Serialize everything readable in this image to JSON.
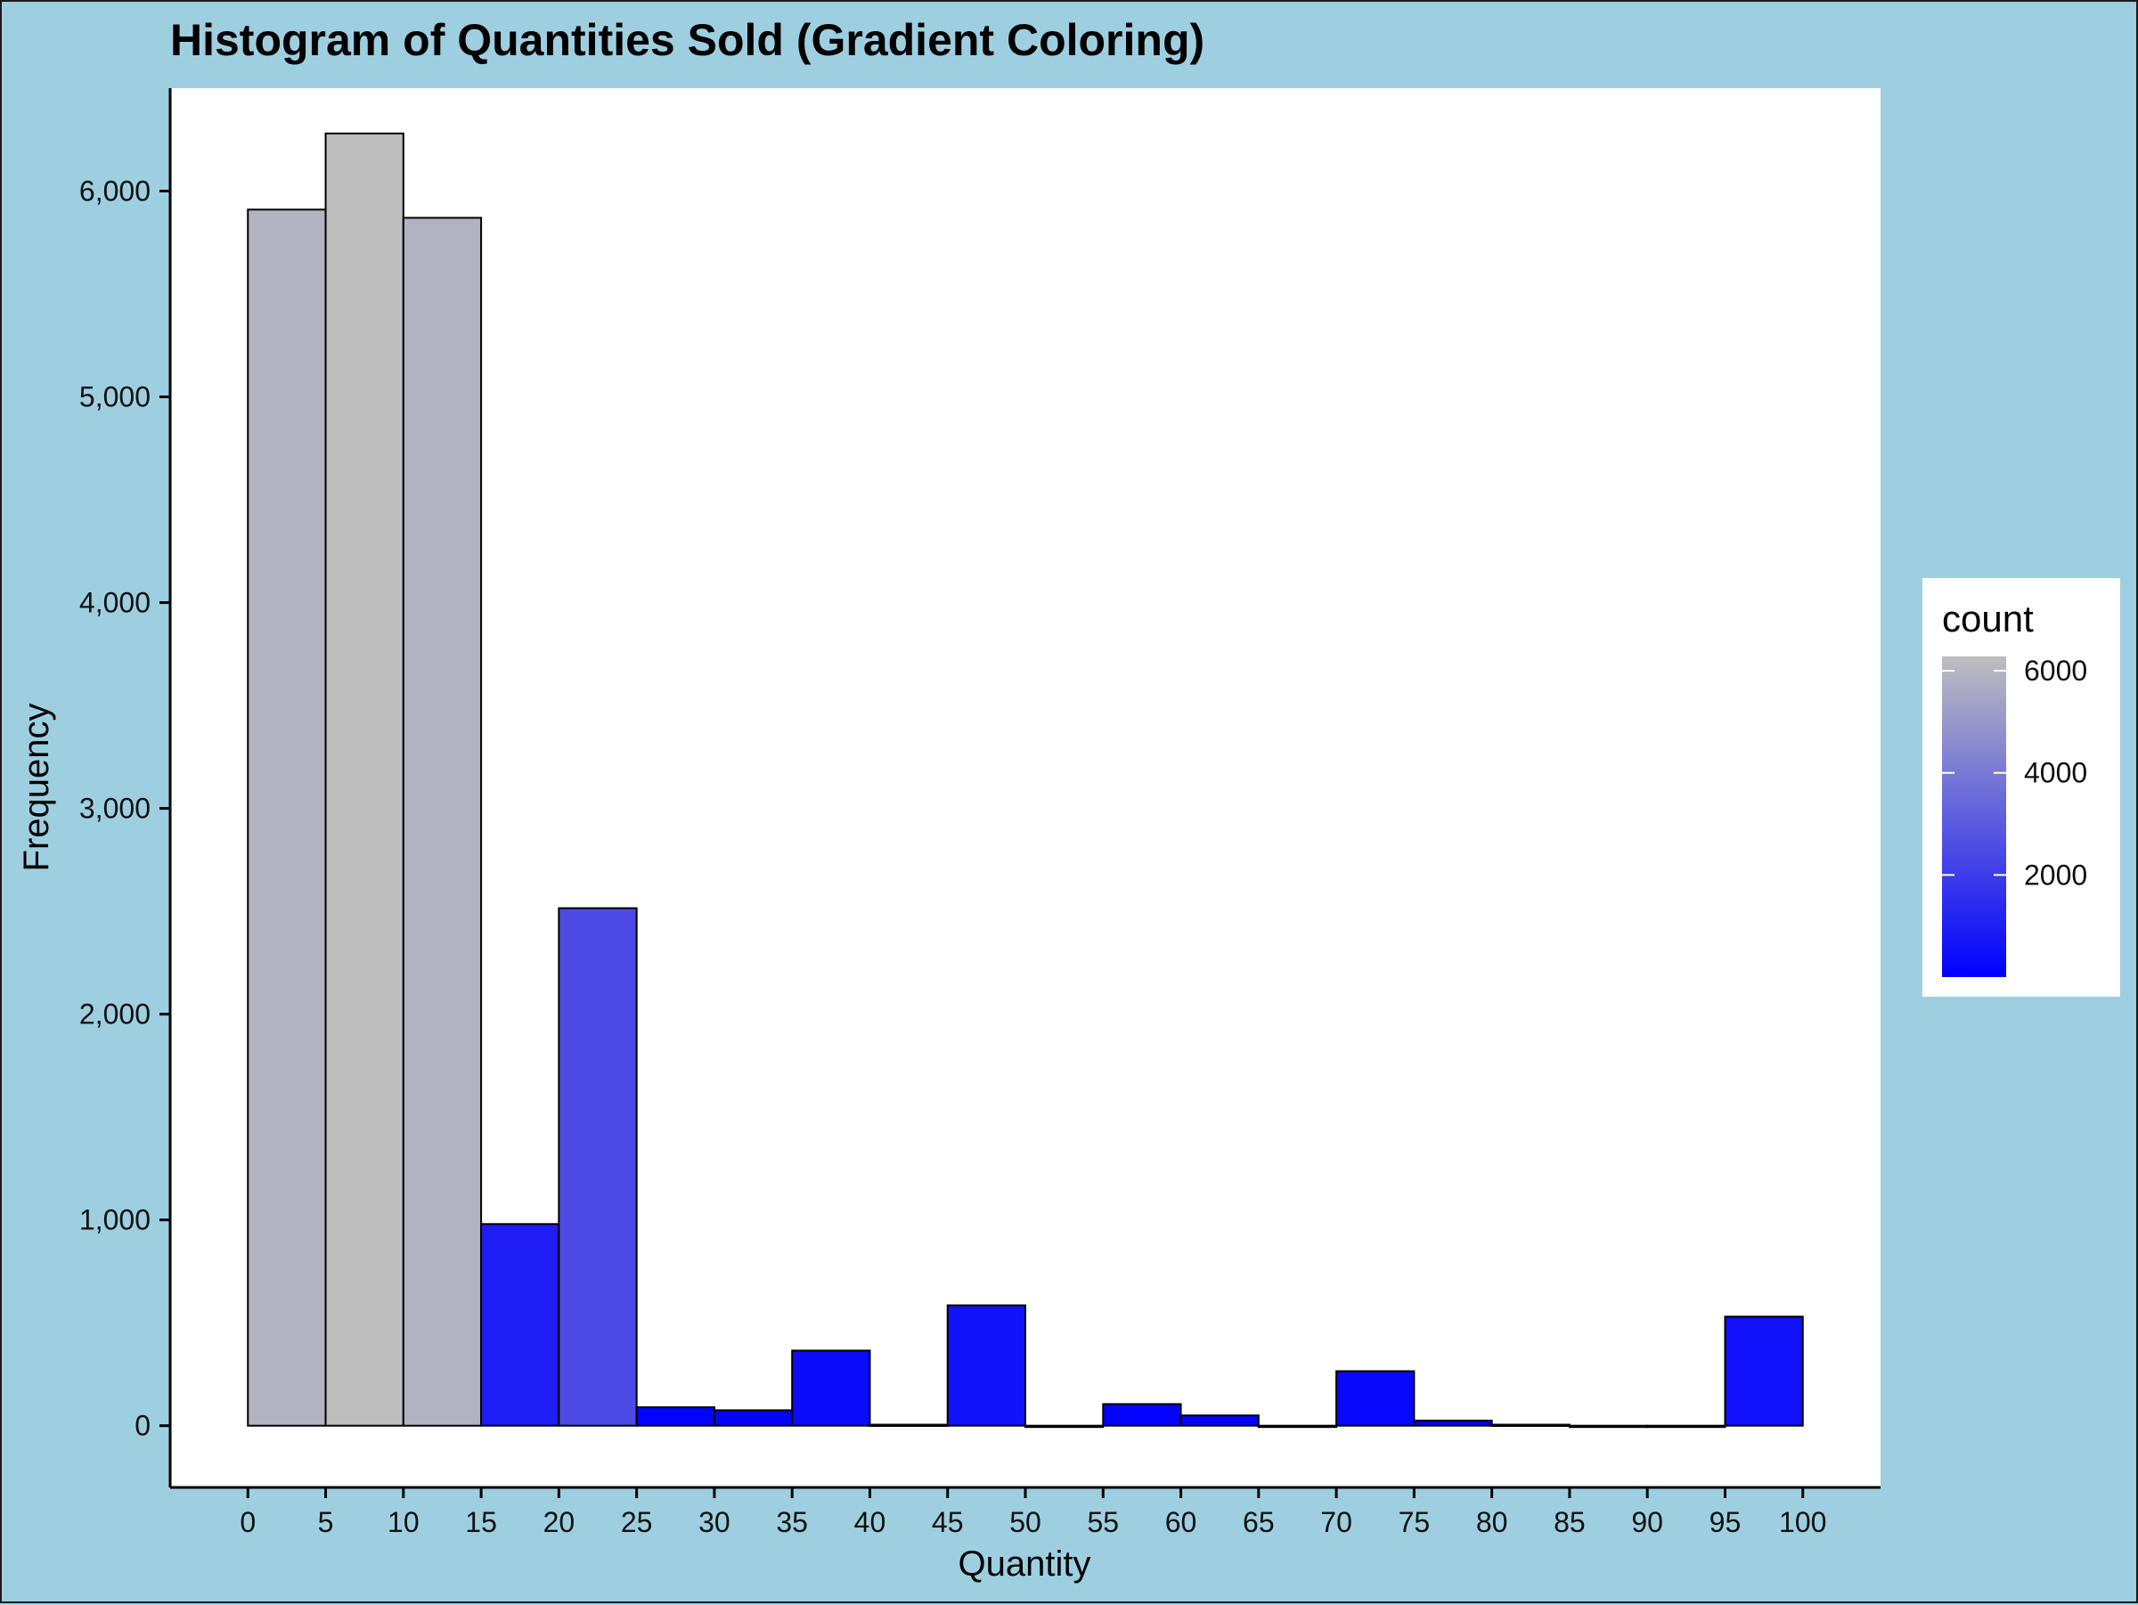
{
  "chart_data": {
    "type": "bar",
    "subtype": "histogram",
    "title": "Histogram of Quantities Sold (Gradient Coloring)",
    "xlabel": "Quantity",
    "ylabel": "Frequency",
    "xlim": [
      -5,
      105
    ],
    "ylim": [
      -300,
      6500
    ],
    "bin_width": 5,
    "bins": [
      {
        "start": 0,
        "end": 5,
        "count": 5910
      },
      {
        "start": 5,
        "end": 10,
        "count": 6280
      },
      {
        "start": 10,
        "end": 15,
        "count": 5870
      },
      {
        "start": 15,
        "end": 20,
        "count": 980
      },
      {
        "start": 20,
        "end": 25,
        "count": 2515
      },
      {
        "start": 25,
        "end": 30,
        "count": 90
      },
      {
        "start": 30,
        "end": 35,
        "count": 75
      },
      {
        "start": 35,
        "end": 40,
        "count": 365
      },
      {
        "start": 40,
        "end": 45,
        "count": 5
      },
      {
        "start": 45,
        "end": 50,
        "count": 585
      },
      {
        "start": 50,
        "end": 55,
        "count": 0
      },
      {
        "start": 55,
        "end": 60,
        "count": 105
      },
      {
        "start": 60,
        "end": 65,
        "count": 50
      },
      {
        "start": 65,
        "end": 70,
        "count": 0
      },
      {
        "start": 70,
        "end": 75,
        "count": 265
      },
      {
        "start": 75,
        "end": 80,
        "count": 25
      },
      {
        "start": 80,
        "end": 85,
        "count": 5
      },
      {
        "start": 85,
        "end": 90,
        "count": 0
      },
      {
        "start": 90,
        "end": 95,
        "count": 0
      },
      {
        "start": 95,
        "end": 100,
        "count": 530
      }
    ],
    "x_ticks": [
      0,
      5,
      10,
      15,
      20,
      25,
      30,
      35,
      40,
      45,
      50,
      55,
      60,
      65,
      70,
      75,
      80,
      85,
      90,
      95,
      100
    ],
    "x_tick_labels": [
      "0",
      "5",
      "10",
      "15",
      "20",
      "25",
      "30",
      "35",
      "40",
      "45",
      "50",
      "55",
      "60",
      "65",
      "70",
      "75",
      "80",
      "85",
      "90",
      "95",
      "100"
    ],
    "y_ticks": [
      0,
      1000,
      2000,
      3000,
      4000,
      5000,
      6000
    ],
    "y_tick_labels": [
      "0",
      "1,000",
      "2,000",
      "3,000",
      "4,000",
      "5,000",
      "6,000"
    ],
    "grid": false,
    "legend": {
      "title": "count",
      "placement": "right",
      "range": [
        0,
        6280
      ],
      "ticks": [
        2000,
        4000,
        6000
      ],
      "tick_labels": [
        "2000",
        "4000",
        "6000"
      ],
      "color_low": "#0000ff",
      "color_high": "#bebebe"
    },
    "colors": {
      "page_background": "#9ecfe0",
      "panel_background": "#ffffff",
      "bar_outline": "#000000"
    }
  }
}
